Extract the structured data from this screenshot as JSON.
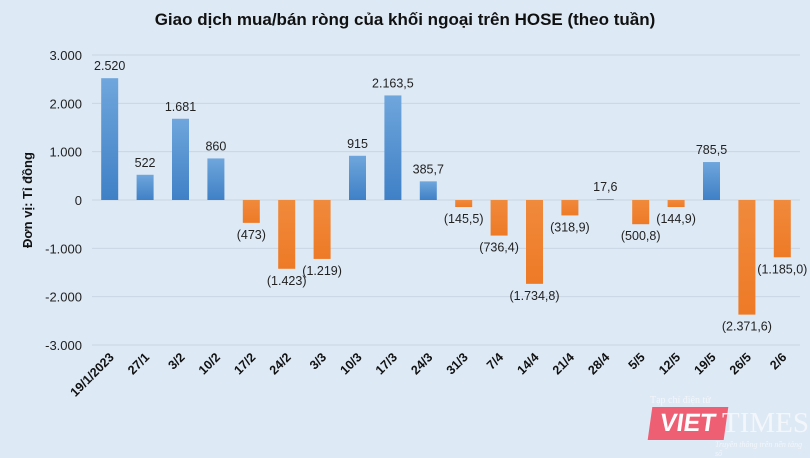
{
  "chart_data": {
    "type": "bar",
    "title": "Giao dịch mua/bán ròng của khối ngoại trên HOSE (theo tuần)",
    "ylabel": "Đơn vị: Tỉ đồng",
    "xlabel": "",
    "ylim": [
      -3000,
      3000
    ],
    "yticks": [
      3000,
      2000,
      1000,
      0,
      -1000,
      -2000,
      -3000
    ],
    "ytick_labels": [
      "3.000",
      "2.000",
      "1.000",
      "0",
      "-1.000",
      "-2.000",
      "-3.000"
    ],
    "grid": true,
    "categories": [
      "19/1/2023",
      "27/1",
      "3/2",
      "10/2",
      "17/2",
      "24/2",
      "3/3",
      "10/3",
      "17/3",
      "24/3",
      "31/3",
      "7/4",
      "14/4",
      "21/4",
      "28/4",
      "5/5",
      "12/5",
      "19/5",
      "26/5",
      "2/6"
    ],
    "values": [
      2520,
      522,
      1681,
      860,
      -473,
      -1423,
      -1219,
      915,
      2163.5,
      385.7,
      -145.5,
      -736.4,
      -1734.8,
      -318.9,
      17.6,
      -500.8,
      -144.9,
      785.5,
      -2371.6,
      -1185.0
    ],
    "data_labels": [
      "2.520",
      "522",
      "1.681",
      "860",
      "(473)",
      "(1.423)",
      "(1.219)",
      "915",
      "2.163,5",
      "385,7",
      "(145,5)",
      "(736,4)",
      "(1.734,8)",
      "(318,9)",
      "17,6",
      "(500,8)",
      "(144,9)",
      "785,5",
      "(2.371,6)",
      "(1.185,0)"
    ],
    "colors": {
      "positive": "#4f8fd0",
      "negative": "#f08030"
    }
  },
  "watermark": {
    "brand": "VIETTIMES",
    "tagline_top": "Tạp chí điện tử",
    "tagline_bottom": "Truyền thông trên nền tảng số"
  }
}
